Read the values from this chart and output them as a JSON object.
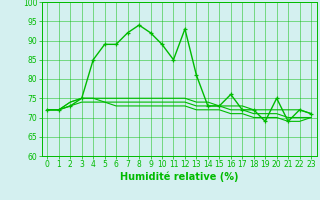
{
  "x": [
    0,
    1,
    2,
    3,
    4,
    5,
    6,
    7,
    8,
    9,
    10,
    11,
    12,
    13,
    14,
    15,
    16,
    17,
    18,
    19,
    20,
    21,
    22,
    23
  ],
  "series": [
    {
      "y": [
        72,
        72,
        73,
        75,
        85,
        89,
        89,
        92,
        94,
        92,
        89,
        85,
        93,
        81,
        73,
        73,
        76,
        72,
        72,
        69,
        75,
        69,
        72,
        71
      ],
      "color": "#00bb00",
      "linewidth": 1.0,
      "marker": "+"
    },
    {
      "y": [
        72,
        72,
        74,
        75,
        75,
        75,
        75,
        75,
        75,
        75,
        75,
        75,
        75,
        74,
        74,
        73,
        73,
        73,
        72,
        72,
        72,
        72,
        72,
        71
      ],
      "color": "#00bb00",
      "linewidth": 0.8,
      "marker": null
    },
    {
      "y": [
        72,
        72,
        74,
        75,
        75,
        74,
        74,
        74,
        74,
        74,
        74,
        74,
        74,
        73,
        73,
        73,
        72,
        72,
        71,
        71,
        71,
        70,
        70,
        70
      ],
      "color": "#00bb00",
      "linewidth": 0.8,
      "marker": null
    },
    {
      "y": [
        72,
        72,
        73,
        74,
        74,
        74,
        73,
        73,
        73,
        73,
        73,
        73,
        73,
        72,
        72,
        72,
        71,
        71,
        70,
        70,
        70,
        69,
        69,
        70
      ],
      "color": "#00bb00",
      "linewidth": 0.8,
      "marker": null
    }
  ],
  "xlabel": "Humidité relative (%)",
  "xlim": [
    -0.5,
    23.5
  ],
  "ylim": [
    60,
    100
  ],
  "yticks": [
    60,
    65,
    70,
    75,
    80,
    85,
    90,
    95,
    100
  ],
  "xticks": [
    0,
    1,
    2,
    3,
    4,
    5,
    6,
    7,
    8,
    9,
    10,
    11,
    12,
    13,
    14,
    15,
    16,
    17,
    18,
    19,
    20,
    21,
    22,
    23
  ],
  "bg_color": "#d4f0f0",
  "grid_color": "#00bb00",
  "line_color": "#00bb00",
  "tick_fontsize": 5.5,
  "label_fontsize": 7
}
